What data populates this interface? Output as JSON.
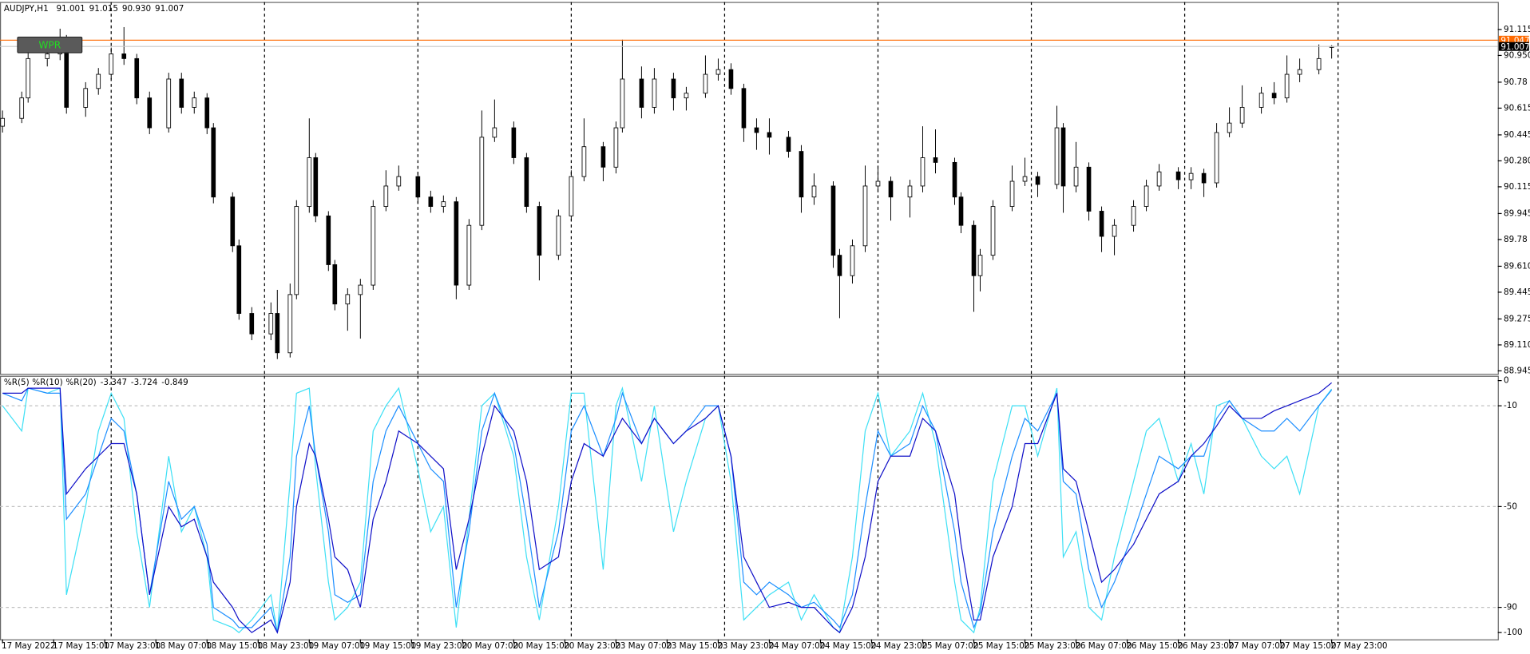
{
  "button": "WPR",
  "chart_data": [
    {
      "type": "candlestick",
      "title": "AUDJPY,H1",
      "last_labels": [
        "91.001",
        "91.015",
        "90.930",
        "91.007"
      ],
      "xlim": [
        -0.4,
        234
      ],
      "ylim": [
        88.926,
        91.29
      ],
      "yticks": [
        91.115,
        {
          "value": 90.95,
          "label": "90.950"
        },
        90.78,
        90.615,
        90.445,
        {
          "value": 90.28,
          "label": "90.280"
        },
        90.115,
        89.945,
        89.78,
        {
          "value": 89.61,
          "label": "89.610"
        },
        89.445,
        89.275,
        {
          "value": 89.11,
          "label": "89.110"
        },
        88.945
      ],
      "separators": [
        17,
        41,
        65,
        89,
        113,
        137,
        161,
        185,
        209
      ],
      "up_color": "#ffffff",
      "down_color": "#000000",
      "price_lines": [
        {
          "value": 91.047,
          "color": "#ff6a00",
          "box": "#ff6a00"
        },
        {
          "value": 91.007,
          "color": "#c8c8c8",
          "box": "#000000"
        }
      ],
      "x": [
        0,
        3,
        4,
        7,
        9,
        10,
        13,
        15,
        17,
        19,
        21,
        23,
        26,
        28,
        30,
        32,
        33,
        36,
        37,
        39,
        42,
        43,
        45,
        46,
        48,
        49,
        51,
        52,
        54,
        56,
        58,
        60,
        62,
        65,
        67,
        69,
        71,
        73,
        75,
        77,
        80,
        82,
        84,
        87,
        89,
        91,
        94,
        96,
        97,
        100,
        102,
        105,
        107,
        110,
        112,
        114,
        116,
        118,
        120,
        123,
        125,
        127,
        130,
        131,
        133,
        135,
        137,
        139,
        142,
        144,
        146,
        149,
        150,
        152,
        153,
        155,
        158,
        160,
        162,
        165,
        166,
        168,
        170,
        172,
        174,
        177,
        179,
        181,
        184,
        186,
        188,
        190,
        192,
        194,
        197,
        199,
        201,
        203,
        206,
        208
      ],
      "open": [
        90.5,
        90.55,
        90.68,
        90.93,
        90.96,
        91.05,
        90.62,
        90.74,
        90.83,
        90.96,
        90.93,
        90.68,
        90.49,
        90.8,
        90.62,
        90.68,
        90.49,
        90.05,
        89.74,
        89.31,
        89.18,
        89.31,
        89.06,
        89.43,
        89.99,
        90.3,
        89.93,
        89.62,
        89.37,
        89.43,
        89.49,
        89.99,
        90.12,
        90.18,
        90.05,
        89.99,
        90.02,
        89.49,
        89.87,
        90.43,
        90.49,
        90.3,
        89.99,
        89.68,
        89.93,
        90.18,
        90.37,
        90.24,
        90.49,
        90.8,
        90.62,
        90.8,
        90.68,
        90.71,
        90.83,
        90.86,
        90.74,
        90.49,
        90.46,
        90.43,
        90.34,
        90.05,
        90.12,
        89.68,
        89.55,
        89.74,
        90.12,
        90.15,
        90.05,
        90.12,
        90.3,
        90.27,
        90.05,
        89.87,
        89.55,
        89.68,
        89.99,
        90.15,
        90.18,
        90.13,
        90.49,
        90.12,
        90.24,
        89.96,
        89.8,
        89.87,
        89.99,
        90.12,
        90.21,
        90.16,
        90.2,
        90.14,
        90.46,
        90.52,
        90.62,
        90.71,
        90.68,
        90.83,
        90.86,
        91.001
      ],
      "high": [
        90.6,
        90.72,
        90.97,
        91.0,
        91.12,
        91.08,
        90.78,
        90.87,
        91.0,
        91.13,
        90.96,
        90.72,
        90.84,
        90.84,
        90.72,
        90.71,
        90.52,
        90.08,
        89.78,
        89.35,
        89.38,
        89.46,
        89.5,
        90.03,
        90.55,
        90.33,
        89.96,
        89.65,
        89.47,
        89.53,
        90.03,
        90.22,
        90.25,
        90.21,
        90.09,
        90.06,
        90.05,
        89.91,
        90.6,
        90.67,
        90.53,
        90.33,
        90.02,
        89.97,
        90.22,
        90.55,
        90.4,
        90.53,
        91.05,
        90.88,
        90.87,
        90.84,
        90.75,
        90.95,
        90.93,
        90.9,
        90.77,
        90.55,
        90.55,
        90.47,
        90.38,
        90.2,
        90.15,
        89.72,
        89.78,
        90.25,
        90.25,
        90.18,
        90.16,
        90.5,
        90.48,
        90.3,
        90.08,
        89.9,
        89.72,
        90.03,
        90.25,
        90.3,
        90.21,
        90.63,
        90.52,
        90.4,
        90.27,
        89.99,
        89.91,
        90.03,
        90.16,
        90.26,
        90.24,
        90.24,
        90.23,
        90.52,
        90.62,
        90.76,
        90.75,
        90.78,
        90.95,
        90.93,
        91.02,
        91.015
      ],
      "low": [
        90.46,
        90.52,
        90.65,
        90.88,
        90.92,
        90.58,
        90.56,
        90.7,
        90.8,
        90.89,
        90.64,
        90.45,
        90.46,
        90.58,
        90.58,
        90.45,
        90.01,
        89.7,
        89.27,
        89.14,
        89.14,
        89.02,
        89.03,
        89.4,
        89.95,
        89.89,
        89.58,
        89.33,
        89.2,
        89.15,
        89.46,
        89.96,
        90.09,
        90.01,
        89.95,
        89.95,
        89.4,
        89.46,
        89.84,
        90.4,
        90.26,
        89.95,
        89.52,
        89.65,
        89.9,
        90.15,
        90.15,
        90.2,
        90.46,
        90.55,
        90.58,
        90.6,
        90.6,
        90.68,
        90.79,
        90.7,
        90.4,
        90.35,
        90.32,
        90.3,
        89.95,
        90.0,
        89.6,
        89.28,
        89.5,
        89.7,
        90.08,
        89.9,
        89.92,
        90.08,
        90.2,
        90.0,
        89.82,
        89.32,
        89.45,
        89.65,
        89.96,
        90.12,
        90.05,
        90.1,
        89.95,
        90.08,
        89.9,
        89.7,
        89.68,
        89.83,
        89.96,
        90.09,
        90.1,
        90.1,
        90.05,
        90.11,
        90.43,
        90.49,
        90.58,
        90.64,
        90.65,
        90.78,
        90.83,
        90.93
      ],
      "close": [
        90.55,
        90.68,
        90.93,
        90.96,
        91.05,
        90.62,
        90.74,
        90.83,
        90.96,
        90.93,
        90.68,
        90.49,
        90.8,
        90.62,
        90.68,
        90.49,
        90.05,
        89.74,
        89.31,
        89.18,
        89.31,
        89.06,
        89.43,
        89.99,
        90.3,
        89.93,
        89.62,
        89.37,
        89.43,
        89.49,
        89.99,
        90.12,
        90.18,
        90.05,
        89.99,
        90.02,
        89.49,
        89.87,
        90.43,
        90.49,
        90.3,
        89.99,
        89.68,
        89.93,
        90.18,
        90.37,
        90.24,
        90.49,
        90.8,
        90.62,
        90.8,
        90.68,
        90.71,
        90.83,
        90.86,
        90.74,
        90.49,
        90.46,
        90.43,
        90.34,
        90.05,
        90.12,
        89.68,
        89.55,
        89.74,
        90.12,
        90.15,
        90.05,
        90.12,
        90.3,
        90.27,
        90.05,
        89.87,
        89.55,
        89.68,
        89.99,
        90.15,
        90.18,
        90.13,
        90.49,
        90.12,
        90.24,
        89.96,
        89.8,
        89.87,
        89.99,
        90.12,
        90.21,
        90.16,
        90.2,
        90.14,
        90.46,
        90.52,
        90.62,
        90.71,
        90.68,
        90.83,
        90.86,
        90.93,
        91.007
      ]
    },
    {
      "type": "line",
      "xlim": [
        -0.4,
        234
      ],
      "ylim": [
        -102.7,
        1.9
      ],
      "yticks": [
        0,
        -10,
        -50,
        -90,
        -100
      ],
      "levels": [
        -10,
        -50,
        -90
      ],
      "xticks": [
        {
          "value": 0,
          "label": "17 May 2022"
        },
        {
          "value": 8,
          "label": "17 May 15:00"
        },
        {
          "value": 16,
          "label": "17 May 23:00"
        },
        {
          "value": 24,
          "label": "18 May 07:00"
        },
        {
          "value": 32,
          "label": "18 May 15:00"
        },
        {
          "value": 40,
          "label": "18 May 23:00"
        },
        {
          "value": 48,
          "label": "19 May 07:00"
        },
        {
          "value": 56,
          "label": "19 May 15:00"
        },
        {
          "value": 64,
          "label": "19 May 23:00"
        },
        {
          "value": 72,
          "label": "20 May 07:00"
        },
        {
          "value": 80,
          "label": "20 May 15:00"
        },
        {
          "value": 88,
          "label": "20 May 23:00"
        },
        {
          "value": 96,
          "label": "23 May 07:00"
        },
        {
          "value": 104,
          "label": "23 May 15:00"
        },
        {
          "value": 112,
          "label": "23 May 23:00"
        },
        {
          "value": 120,
          "label": "24 May 07:00"
        },
        {
          "value": 128,
          "label": "24 May 15:00"
        },
        {
          "value": 136,
          "label": "24 May 23:00"
        },
        {
          "value": 144,
          "label": "25 May 07:00"
        },
        {
          "value": 152,
          "label": "25 May 15:00"
        },
        {
          "value": 160,
          "label": "25 May 23:00"
        },
        {
          "value": 168,
          "label": "26 May 07:00"
        },
        {
          "value": 176,
          "label": "26 May 15:00"
        },
        {
          "value": 184,
          "label": "26 May 23:00"
        },
        {
          "value": 192,
          "label": "27 May 07:00"
        },
        {
          "value": 200,
          "label": "27 May 15:00"
        },
        {
          "value": 208,
          "label": "27 May 23:00"
        }
      ],
      "x": [
        0,
        3,
        4,
        7,
        9,
        10,
        13,
        15,
        17,
        19,
        21,
        23,
        26,
        28,
        30,
        32,
        33,
        36,
        37,
        39,
        42,
        43,
        45,
        46,
        48,
        49,
        51,
        52,
        54,
        56,
        58,
        60,
        62,
        65,
        67,
        69,
        71,
        73,
        75,
        77,
        80,
        82,
        84,
        87,
        89,
        91,
        94,
        96,
        97,
        100,
        102,
        105,
        107,
        110,
        112,
        114,
        116,
        118,
        120,
        123,
        125,
        127,
        130,
        131,
        133,
        135,
        137,
        139,
        142,
        144,
        146,
        149,
        150,
        152,
        153,
        155,
        158,
        160,
        162,
        165,
        166,
        168,
        170,
        172,
        174,
        177,
        179,
        181,
        184,
        186,
        188,
        190,
        192,
        194,
        197,
        199,
        201,
        203,
        206,
        208
      ],
      "series": [
        {
          "name": "%R(5)",
          "color": "#3fe0f5",
          "values": [
            -10,
            -20,
            -3,
            -5,
            -3,
            -85,
            -50,
            -20,
            -5,
            -15,
            -60,
            -90,
            -30,
            -60,
            -50,
            -70,
            -95,
            -98,
            -100,
            -95,
            -85,
            -100,
            -40,
            -5,
            -3,
            -35,
            -80,
            -95,
            -90,
            -80,
            -20,
            -10,
            -3,
            -35,
            -60,
            -50,
            -98,
            -55,
            -10,
            -5,
            -30,
            -70,
            -95,
            -50,
            -5,
            -5,
            -75,
            -10,
            -3,
            -40,
            -10,
            -60,
            -40,
            -15,
            -10,
            -40,
            -95,
            -90,
            -85,
            -80,
            -95,
            -85,
            -98,
            -100,
            -70,
            -20,
            -5,
            -30,
            -20,
            -5,
            -25,
            -80,
            -95,
            -100,
            -90,
            -40,
            -10,
            -10,
            -30,
            -3,
            -70,
            -60,
            -90,
            -95,
            -70,
            -40,
            -20,
            -15,
            -40,
            -25,
            -45,
            -10,
            -8,
            -15,
            -30,
            -35,
            -30,
            -45,
            -10,
            -3.347
          ]
        },
        {
          "name": "%R(10)",
          "color": "#1e8fff",
          "values": [
            -5,
            -8,
            -3,
            -5,
            -5,
            -55,
            -45,
            -30,
            -15,
            -20,
            -45,
            -85,
            -40,
            -55,
            -50,
            -65,
            -90,
            -95,
            -98,
            -98,
            -90,
            -100,
            -70,
            -30,
            -10,
            -30,
            -60,
            -85,
            -88,
            -85,
            -40,
            -20,
            -10,
            -25,
            -35,
            -40,
            -90,
            -60,
            -20,
            -5,
            -25,
            -55,
            -90,
            -60,
            -20,
            -10,
            -30,
            -15,
            -5,
            -25,
            -15,
            -25,
            -20,
            -10,
            -10,
            -30,
            -80,
            -85,
            -80,
            -85,
            -90,
            -88,
            -95,
            -98,
            -85,
            -50,
            -20,
            -30,
            -25,
            -10,
            -20,
            -60,
            -80,
            -98,
            -92,
            -60,
            -30,
            -15,
            -20,
            -5,
            -40,
            -45,
            -75,
            -90,
            -80,
            -60,
            -45,
            -30,
            -35,
            -30,
            -30,
            -15,
            -8,
            -15,
            -20,
            -20,
            -15,
            -20,
            -10,
            -3.724
          ]
        },
        {
          "name": "%R(20)",
          "color": "#1010c8",
          "values": [
            -5,
            -5,
            -3,
            -3,
            -3,
            -45,
            -35,
            -30,
            -25,
            -25,
            -45,
            -85,
            -50,
            -58,
            -55,
            -70,
            -80,
            -90,
            -95,
            -100,
            -95,
            -100,
            -80,
            -50,
            -25,
            -30,
            -55,
            -70,
            -75,
            -90,
            -55,
            -40,
            -20,
            -25,
            -30,
            -35,
            -75,
            -55,
            -30,
            -10,
            -20,
            -40,
            -75,
            -70,
            -40,
            -25,
            -30,
            -20,
            -15,
            -25,
            -15,
            -25,
            -20,
            -15,
            -10,
            -30,
            -70,
            -80,
            -90,
            -88,
            -90,
            -90,
            -98,
            -100,
            -90,
            -70,
            -40,
            -30,
            -30,
            -15,
            -20,
            -45,
            -65,
            -95,
            -95,
            -70,
            -50,
            -25,
            -25,
            -5,
            -35,
            -40,
            -60,
            -80,
            -75,
            -65,
            -55,
            -45,
            -40,
            -30,
            -25,
            -18,
            -10,
            -15,
            -15,
            -12,
            -10,
            -8,
            -5,
            -0.849
          ]
        }
      ]
    }
  ]
}
